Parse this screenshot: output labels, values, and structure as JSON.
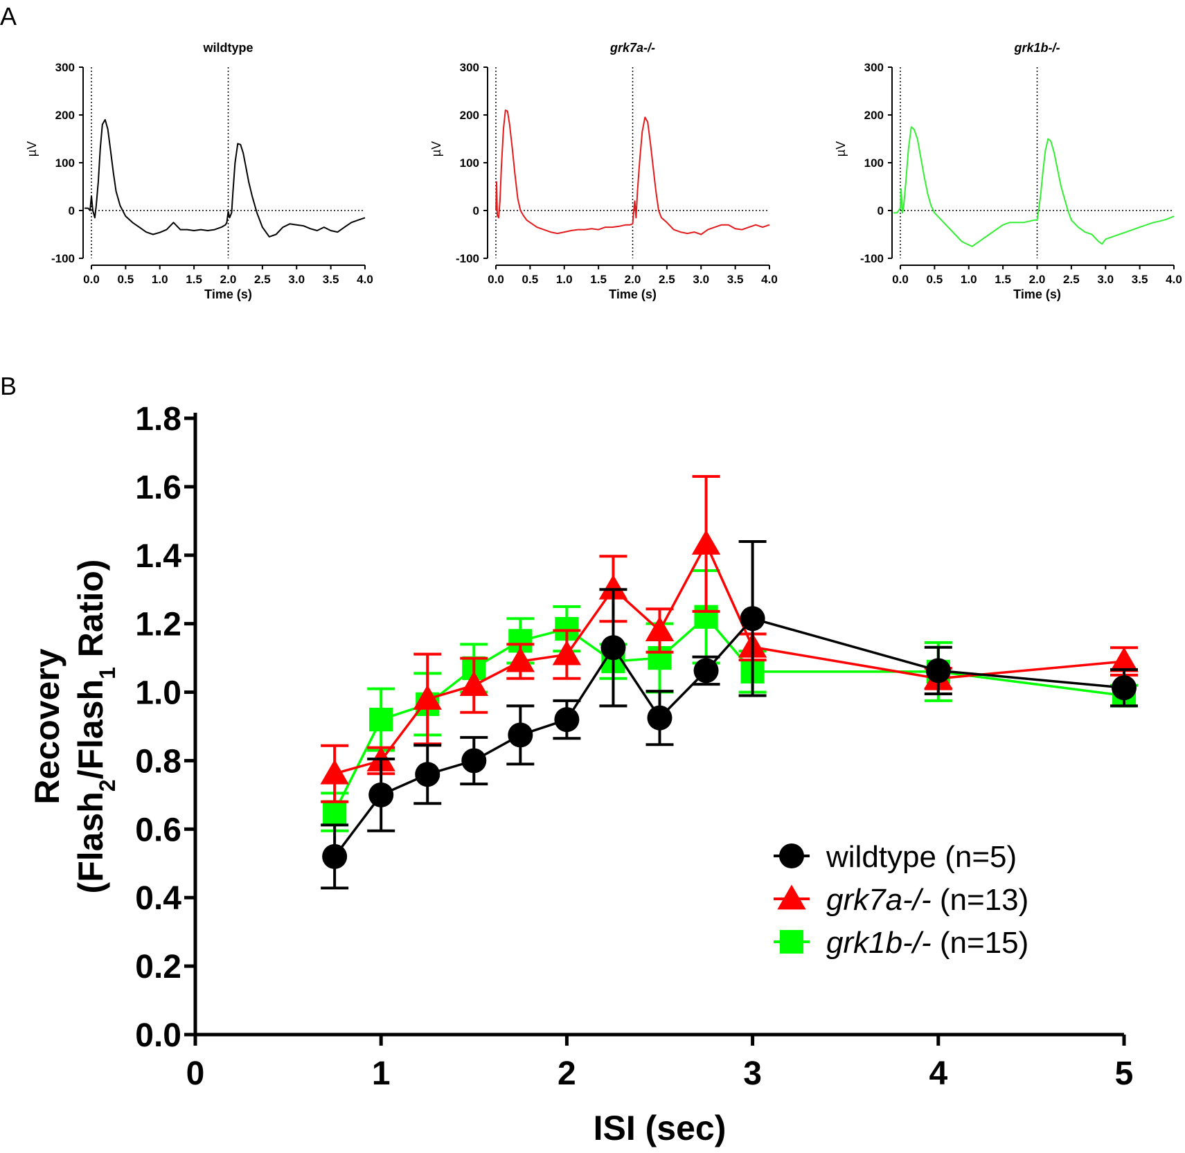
{
  "panel_labels": {
    "a": "A",
    "b": "B"
  },
  "chart_data": [
    {
      "type": "line",
      "panel": "A",
      "title": "wildtype",
      "title_style": "bold",
      "xlabel": "Time (s)",
      "ylabel": "µV",
      "x_ticks": [
        "0.0",
        "0.5",
        "1.0",
        "1.5",
        "2.0",
        "2.5",
        "3.0",
        "3.5",
        "4.0"
      ],
      "y_ticks": [
        "-100",
        "0",
        "100",
        "200",
        "300"
      ],
      "xlim": [
        0,
        4
      ],
      "ylim": [
        -100,
        300
      ],
      "color": "#000000",
      "flash_times": [
        0,
        2
      ],
      "reference_line_y": 0,
      "series": [
        {
          "x": [
            -0.1,
            -0.05,
            -0.02,
            0.0,
            0.02,
            0.05,
            0.07,
            0.1,
            0.13,
            0.16,
            0.2,
            0.24,
            0.28,
            0.32,
            0.36,
            0.42,
            0.5,
            0.6,
            0.7,
            0.8,
            0.9,
            1.0,
            1.1,
            1.2,
            1.3,
            1.4,
            1.5,
            1.6,
            1.7,
            1.8,
            1.9,
            1.96,
            1.98,
            2.0,
            2.02,
            2.05,
            2.07,
            2.1,
            2.14,
            2.18,
            2.22,
            2.26,
            2.3,
            2.35,
            2.42,
            2.5,
            2.6,
            2.7,
            2.8,
            2.9,
            3.0,
            3.1,
            3.2,
            3.3,
            3.4,
            3.5,
            3.6,
            3.7,
            3.8,
            3.9,
            4.0
          ],
          "y": [
            5,
            5,
            0,
            30,
            0,
            -15,
            10,
            60,
            130,
            180,
            190,
            170,
            125,
            80,
            40,
            10,
            -12,
            -25,
            -35,
            -45,
            -50,
            -46,
            -40,
            -25,
            -40,
            -40,
            -42,
            -40,
            -42,
            -40,
            -35,
            -30,
            -25,
            -2,
            -15,
            -5,
            40,
            100,
            140,
            138,
            120,
            90,
            60,
            30,
            -5,
            -35,
            -55,
            -50,
            -35,
            -28,
            -30,
            -32,
            -38,
            -42,
            -35,
            -42,
            -45,
            -35,
            -25,
            -20,
            -15
          ]
        }
      ]
    },
    {
      "type": "line",
      "panel": "A",
      "title": "grk7a-/-",
      "title_style": "bold-italic",
      "xlabel": "Time (s)",
      "ylabel": "µV",
      "x_ticks": [
        "0.0",
        "0.5",
        "1.0",
        "1.5",
        "2.0",
        "2.5",
        "3.0",
        "3.5",
        "4.0"
      ],
      "y_ticks": [
        "-100",
        "0",
        "100",
        "200",
        "300"
      ],
      "xlim": [
        0,
        4
      ],
      "ylim": [
        -100,
        300
      ],
      "color": "#e31a1c",
      "flash_times": [
        0,
        2
      ],
      "reference_line_y": 0,
      "series": [
        {
          "x": [
            0.0,
            0.01,
            0.02,
            0.04,
            0.06,
            0.08,
            0.11,
            0.14,
            0.17,
            0.2,
            0.24,
            0.28,
            0.32,
            0.36,
            0.4,
            0.45,
            0.5,
            0.6,
            0.7,
            0.8,
            0.9,
            1.0,
            1.1,
            1.2,
            1.3,
            1.4,
            1.5,
            1.6,
            1.7,
            1.8,
            1.9,
            1.96,
            2.0,
            2.01,
            2.03,
            2.05,
            2.07,
            2.1,
            2.14,
            2.18,
            2.22,
            2.26,
            2.3,
            2.34,
            2.38,
            2.42,
            2.5,
            2.6,
            2.7,
            2.8,
            2.9,
            3.0,
            3.1,
            3.2,
            3.3,
            3.4,
            3.5,
            3.6,
            3.7,
            3.8,
            3.9,
            4.0
          ],
          "y": [
            0,
            60,
            -10,
            -15,
            20,
            90,
            170,
            210,
            208,
            180,
            130,
            75,
            25,
            0,
            -10,
            -20,
            -25,
            -35,
            -40,
            -45,
            -48,
            -45,
            -42,
            -40,
            -40,
            -38,
            -40,
            -35,
            -35,
            -33,
            -30,
            -30,
            -28,
            -10,
            20,
            -15,
            40,
            100,
            165,
            195,
            185,
            140,
            90,
            40,
            0,
            -15,
            -25,
            -40,
            -45,
            -48,
            -45,
            -50,
            -40,
            -35,
            -30,
            -30,
            -38,
            -40,
            -35,
            -30,
            -35,
            -30
          ]
        }
      ]
    },
    {
      "type": "line",
      "panel": "A",
      "title": "grk1b-/-",
      "title_style": "bold-italic",
      "xlabel": "Time (s)",
      "ylabel": "µV",
      "x_ticks": [
        "0.0",
        "0.5",
        "1.0",
        "1.5",
        "2.0",
        "2.5",
        "3.0",
        "3.5",
        "4.0"
      ],
      "y_ticks": [
        "-100",
        "0",
        "100",
        "200",
        "300"
      ],
      "xlim": [
        0,
        4
      ],
      "ylim": [
        -100,
        300
      ],
      "color": "#33ee33",
      "flash_times": [
        0,
        2
      ],
      "reference_line_y": 0,
      "series": [
        {
          "x": [
            -0.1,
            -0.05,
            0.0,
            0.01,
            0.03,
            0.05,
            0.08,
            0.12,
            0.16,
            0.2,
            0.25,
            0.3,
            0.35,
            0.4,
            0.45,
            0.5,
            0.6,
            0.7,
            0.8,
            0.9,
            1.0,
            1.05,
            1.1,
            1.2,
            1.3,
            1.4,
            1.5,
            1.6,
            1.7,
            1.8,
            1.9,
            1.96,
            2.0,
            2.02,
            2.05,
            2.08,
            2.12,
            2.16,
            2.2,
            2.25,
            2.3,
            2.35,
            2.4,
            2.45,
            2.5,
            2.6,
            2.7,
            2.8,
            2.9,
            2.95,
            3.0,
            3.1,
            3.2,
            3.3,
            3.4,
            3.5,
            3.6,
            3.7,
            3.8,
            3.9,
            4.0
          ],
          "y": [
            -5,
            -5,
            5,
            45,
            -5,
            10,
            60,
            130,
            175,
            170,
            150,
            110,
            70,
            35,
            10,
            -5,
            -20,
            -35,
            -50,
            -65,
            -72,
            -75,
            -70,
            -60,
            -50,
            -40,
            -30,
            -25,
            -25,
            -25,
            -22,
            -20,
            -20,
            0,
            30,
            75,
            125,
            150,
            145,
            120,
            85,
            50,
            25,
            0,
            -20,
            -35,
            -45,
            -50,
            -65,
            -70,
            -60,
            -55,
            -50,
            -45,
            -40,
            -35,
            -30,
            -25,
            -22,
            -18,
            -12
          ]
        }
      ]
    },
    {
      "type": "scatter",
      "panel": "B",
      "xlabel": "ISI (sec)",
      "ylabel_line1": "Recovery",
      "ylabel_line2_parts": {
        "open": "(Flash",
        "sub2": "2",
        "mid": "/Flash",
        "sub1": "1",
        "close": " Ratio)"
      },
      "x_ticks": [
        "0",
        "1",
        "2",
        "3",
        "4",
        "5"
      ],
      "y_ticks": [
        "0.0",
        "0.2",
        "0.4",
        "0.6",
        "0.8",
        "1.0",
        "1.2",
        "1.4",
        "1.6",
        "1.8"
      ],
      "xlim": [
        0,
        5
      ],
      "ylim": [
        0,
        1.8
      ],
      "legend_position": "bottom-right",
      "series": [
        {
          "name": "wildtype",
          "name_style": "normal",
          "n_label": " (n=5)",
          "marker": "circle",
          "color": "#000000",
          "x": [
            0.75,
            1,
            1.25,
            1.5,
            1.75,
            2,
            2.25,
            2.5,
            2.75,
            3,
            4,
            5
          ],
          "y": [
            0.52,
            0.7,
            0.76,
            0.8,
            0.875,
            0.92,
            1.13,
            0.925,
            1.063,
            1.215,
            1.063,
            1.013
          ],
          "err": [
            0.092,
            0.105,
            0.085,
            0.068,
            0.085,
            0.055,
            0.17,
            0.078,
            0.04,
            0.225,
            0.068,
            0.053
          ]
        },
        {
          "name": "grk7a-/-",
          "name_style": "italic",
          "n_label": " (n=13)",
          "marker": "triangle",
          "color": "#ff0000",
          "x": [
            0.75,
            1,
            1.25,
            1.5,
            1.75,
            2,
            2.25,
            2.5,
            2.75,
            3,
            4,
            5
          ],
          "y": [
            0.762,
            0.8,
            0.98,
            1.02,
            1.09,
            1.11,
            1.302,
            1.18,
            1.433,
            1.132,
            1.04,
            1.09
          ],
          "err": [
            0.082,
            0.038,
            0.131,
            0.079,
            0.05,
            0.07,
            0.095,
            0.063,
            0.197,
            0.038,
            0.03,
            0.04
          ]
        },
        {
          "name": "grk1b-/-",
          "name_style": "italic",
          "n_label": " (n=15)",
          "marker": "square",
          "color": "#00ff00",
          "x": [
            0.75,
            1,
            1.25,
            1.5,
            1.75,
            2,
            2.25,
            2.5,
            2.75,
            3,
            4,
            5
          ],
          "y": [
            0.65,
            0.92,
            0.965,
            1.07,
            1.15,
            1.185,
            1.09,
            1.1,
            1.22,
            1.06,
            1.06,
            0.99
          ],
          "err": [
            0.055,
            0.09,
            0.09,
            0.07,
            0.065,
            0.065,
            0.05,
            0.1,
            0.135,
            0.06,
            0.085,
            0.03
          ]
        }
      ]
    }
  ]
}
